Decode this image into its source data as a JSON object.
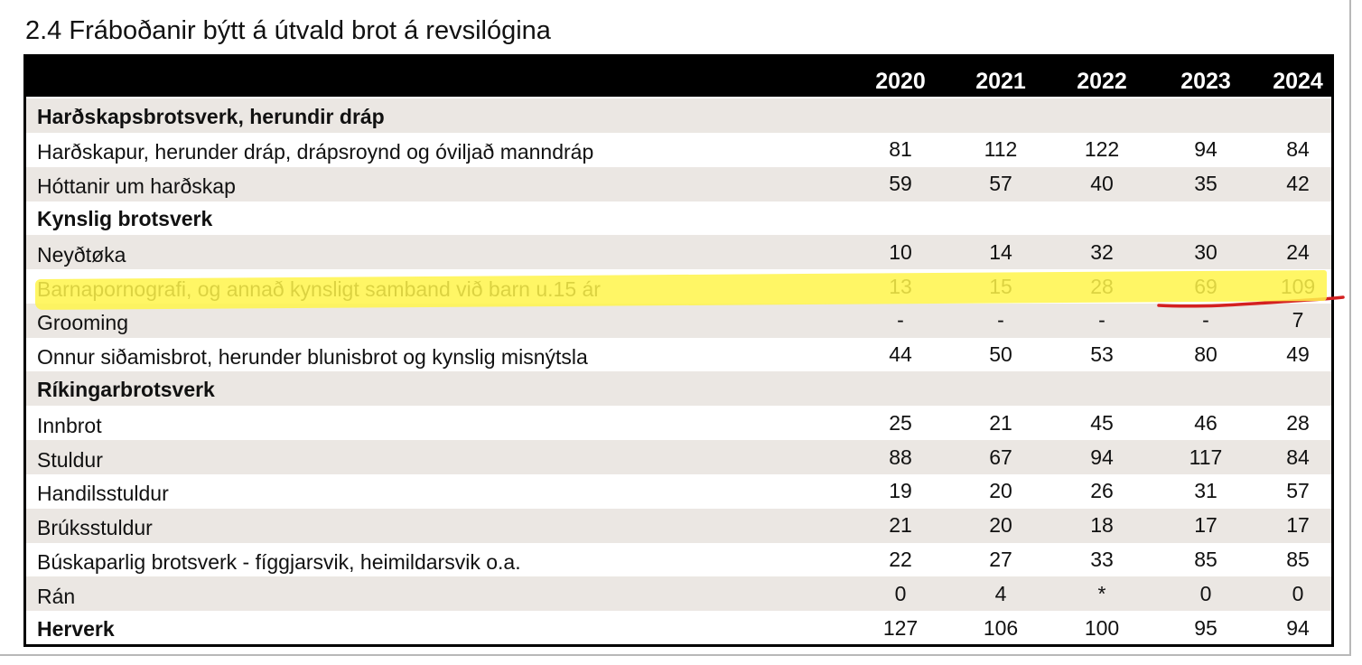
{
  "title": "2.4 Fráboðanir býtt á útvald brot á revsilógina",
  "years": [
    "2020",
    "2021",
    "2022",
    "2023",
    "2024"
  ],
  "rows": [
    {
      "label": "Harðskapsbrotsverk, herundir dráp",
      "section": true,
      "values": [
        "",
        "",
        "",
        "",
        ""
      ]
    },
    {
      "label": "Harðskapur, herunder dráp, drápsroynd og óviljað manndráp",
      "section": false,
      "values": [
        "81",
        "112",
        "122",
        "94",
        "84"
      ]
    },
    {
      "label": "Hóttanir um harðskap",
      "section": false,
      "values": [
        "59",
        "57",
        "40",
        "35",
        "42"
      ]
    },
    {
      "label": "Kynslig brotsverk",
      "section": true,
      "values": [
        "",
        "",
        "",
        "",
        ""
      ]
    },
    {
      "label": "Neyðtøka",
      "section": false,
      "values": [
        "10",
        "14",
        "32",
        "30",
        "24"
      ]
    },
    {
      "label": "Barnapornografi, og annað kynsligt samband við barn u.15 ár",
      "section": false,
      "highlighted": true,
      "values": [
        "13",
        "15",
        "28",
        "69",
        "109"
      ]
    },
    {
      "label": "Grooming",
      "section": false,
      "values": [
        "-",
        "-",
        "-",
        "-",
        "7"
      ]
    },
    {
      "label": "Onnur siðamisbrot, herunder blunisbrot og kynslig misnýtsla",
      "section": false,
      "values": [
        "44",
        "50",
        "53",
        "80",
        "49"
      ]
    },
    {
      "label": "Ríkingarbrotsverk",
      "section": true,
      "values": [
        "",
        "",
        "",
        "",
        ""
      ]
    },
    {
      "label": "Innbrot",
      "section": false,
      "values": [
        "25",
        "21",
        "45",
        "46",
        "28"
      ]
    },
    {
      "label": "Stuldur",
      "section": false,
      "values": [
        "88",
        "67",
        "94",
        "117",
        "84"
      ]
    },
    {
      "label": "Handilsstuldur",
      "section": false,
      "values": [
        "19",
        "20",
        "26",
        "31",
        "57"
      ]
    },
    {
      "label": "Brúksstuldur",
      "section": false,
      "values": [
        "21",
        "20",
        "18",
        "17",
        "17"
      ]
    },
    {
      "label": "Búskaparlig brotsverk - fíggjarsvik, heimildarsvik o.a.",
      "section": false,
      "values": [
        "22",
        "27",
        "33",
        "85",
        "85"
      ]
    },
    {
      "label": "Rán",
      "section": false,
      "values": [
        "0",
        "4",
        "*",
        "0",
        "0"
      ]
    },
    {
      "label": "Herverk",
      "section": true,
      "values": [
        "127",
        "106",
        "100",
        "95",
        "94"
      ]
    }
  ],
  "colors": {
    "header_bg": "#000000",
    "shaded_row": "#ebe7e3",
    "highlighter": "#fff54a",
    "pen_mark": "#d42020"
  }
}
